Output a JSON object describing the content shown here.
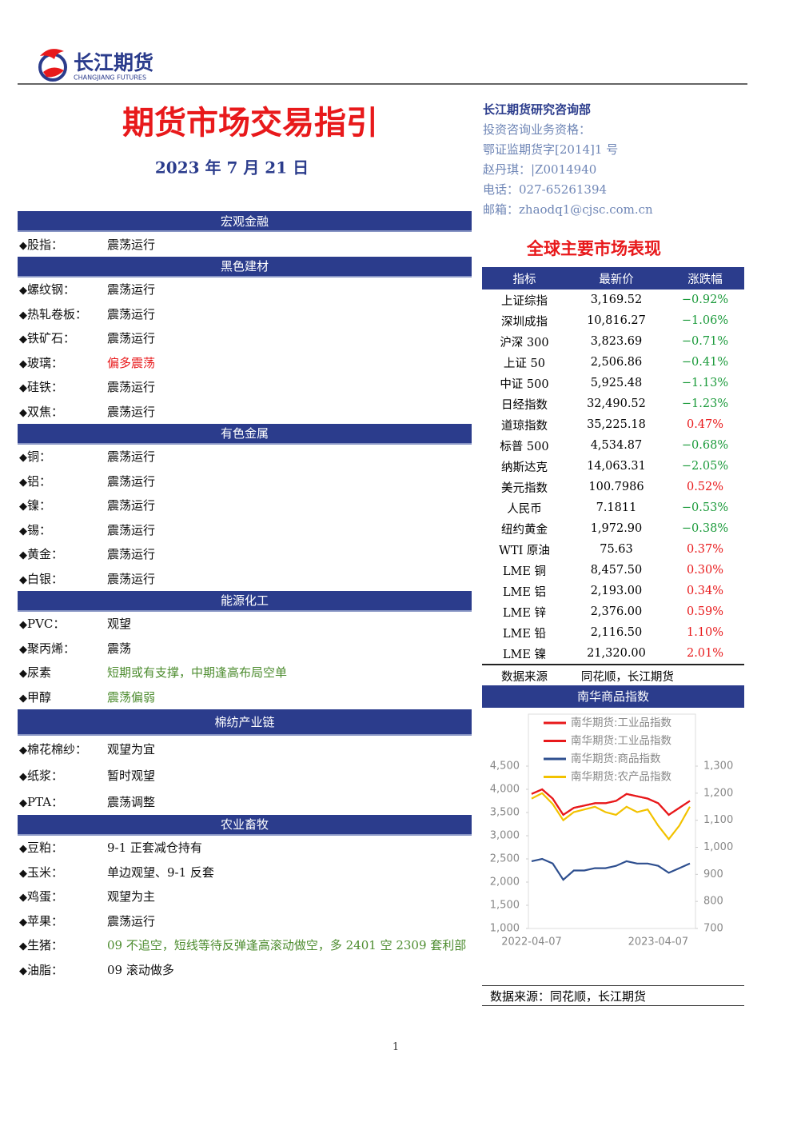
{
  "header": {
    "logo_cn": "长江期货",
    "logo_en": "CHANGJIANG FUTURES",
    "title": "期货市场交易指引",
    "date": "2023 年 7 月 21 日"
  },
  "contact": {
    "department": "长江期货研究咨询部",
    "lines": [
      "投资咨询业务资格：",
      "鄂证监期货字[2014]1 号",
      "赵丹琪：|Z0014940",
      "电话：027-65261394",
      "邮箱：zhaodq1@cjsc.com.cn"
    ]
  },
  "guide": {
    "sections": [
      {
        "title": "宏观金融",
        "items": [
          {
            "name": "股指：",
            "view": "震荡运行"
          }
        ]
      },
      {
        "title": "黑色建材",
        "items": [
          {
            "name": "螺纹钢：",
            "view": "震荡运行"
          },
          {
            "name": "热轧卷板：",
            "view": "震荡运行"
          },
          {
            "name": "铁矿石：",
            "view": "震荡运行"
          },
          {
            "name": "玻璃：",
            "view": "偏多震荡",
            "color": "#e8191b"
          },
          {
            "name": "硅铁：",
            "view": "震荡运行"
          },
          {
            "name": "双焦：",
            "view": "震荡运行"
          }
        ]
      },
      {
        "title": "有色金属",
        "items": [
          {
            "name": "铜：",
            "view": "震荡运行"
          },
          {
            "name": "铝：",
            "view": "震荡运行"
          },
          {
            "name": "镍：",
            "view": "震荡运行"
          },
          {
            "name": "锡：",
            "view": "震荡运行"
          },
          {
            "name": "黄金：",
            "view": "震荡运行"
          },
          {
            "name": "白银：",
            "view": "震荡运行"
          }
        ]
      },
      {
        "title": "能源化工",
        "items": [
          {
            "name": "PVC：",
            "view": "观望"
          },
          {
            "name": "聚丙烯：",
            "view": "震荡"
          },
          {
            "name": "尿素",
            "view": "短期或有支撑，中期逢高布局空单",
            "color": "#4d8c2f"
          },
          {
            "name": "甲醇",
            "view": "震荡偏弱",
            "color": "#4d8c2f"
          }
        ]
      },
      {
        "title": "棉纺产业链",
        "items": [
          {
            "name": "棉花棉纱：",
            "view": "观望为宜"
          },
          {
            "name": "纸浆：",
            "view": "暂时观望"
          },
          {
            "name": "PTA：",
            "view": "震荡调整"
          }
        ]
      },
      {
        "title": "农业畜牧",
        "items": [
          {
            "name": "豆粕：",
            "view": "9-1 正套减仓持有"
          },
          {
            "name": "玉米：",
            "view": "单边观望、9-1 反套"
          },
          {
            "name": "鸡蛋：",
            "view": "观望为主"
          },
          {
            "name": "苹果：",
            "view": "震荡运行"
          },
          {
            "name": "生猪：",
            "view": "09 不追空，短线等待反弹逢高滚动做空，多 2401 空 2309 套利部",
            "color": "#4d8c2f"
          },
          {
            "name": "油脂：",
            "view": "09 滚动做多"
          }
        ]
      }
    ]
  },
  "markets": {
    "title": "全球主要市场表现",
    "columns": [
      "指标",
      "最新价",
      "涨跌幅"
    ],
    "rows": [
      [
        "上证综指",
        "3,169.52",
        "−0.92%"
      ],
      [
        "深圳成指",
        "10,816.27",
        "−1.06%"
      ],
      [
        "沪深 300",
        "3,823.69",
        "−0.71%"
      ],
      [
        "上证 50",
        "2,506.86",
        "−0.41%"
      ],
      [
        "中证 500",
        "5,925.48",
        "−1.13%"
      ],
      [
        "日经指数",
        "32,490.52",
        "−1.23%"
      ],
      [
        "道琼指数",
        "35,225.18",
        "0.47%"
      ],
      [
        "标普 500",
        "4,534.87",
        "−0.68%"
      ],
      [
        "纳斯达克",
        "14,063.31",
        "−2.05%"
      ],
      [
        "美元指数",
        "100.7986",
        "0.52%"
      ],
      [
        "人民币",
        "7.1811",
        "−0.53%"
      ],
      [
        "纽约黄金",
        "1,972.90",
        "−0.38%"
      ],
      [
        "WTI 原油",
        "75.63",
        "0.37%"
      ],
      [
        "LME 铜",
        "8,457.50",
        "0.30%"
      ],
      [
        "LME 铝",
        "2,193.00",
        "0.34%"
      ],
      [
        "LME 锌",
        "2,376.00",
        "0.59%"
      ],
      [
        "LME 铅",
        "2,116.50",
        "1.10%"
      ],
      [
        "LME 镍",
        "21,320.00",
        "2.01%"
      ]
    ],
    "source": [
      "数据来源",
      "同花顺，长江期货"
    ]
  },
  "chart_data": {
    "type": "line",
    "title": "南华商品指数",
    "categories": [
      "2022-04-07",
      null,
      null,
      null,
      null,
      null,
      null,
      null,
      null,
      null,
      null,
      null,
      "2023-04-07",
      null,
      null,
      null
    ],
    "series": [
      {
        "name": "南华期货:工业品指数",
        "color": "#e8191b",
        "values": [
          3900,
          4000,
          3800,
          3450,
          3600,
          3650,
          3700,
          3700,
          3750,
          3900,
          3850,
          3800,
          3700,
          3450,
          3600,
          3750
        ]
      },
      {
        "name": "南华期货:工业品指数",
        "color": "#e8191b",
        "values": [
          3900,
          4000,
          3800,
          3450,
          3600,
          3650,
          3700,
          3700,
          3750,
          3900,
          3850,
          3800,
          3700,
          3450,
          3600,
          3750
        ]
      },
      {
        "name": "南华期货:商品指数",
        "color": "#2e4f8f",
        "values": [
          2450,
          2500,
          2400,
          2050,
          2250,
          2250,
          2300,
          2300,
          2350,
          2450,
          2400,
          2400,
          2350,
          2200,
          2300,
          2400
        ]
      },
      {
        "name": "南华期货:农产品指数",
        "color": "#f2c200",
        "axis": "y2",
        "values": [
          1180,
          1200,
          1160,
          1100,
          1130,
          1140,
          1150,
          1130,
          1120,
          1150,
          1130,
          1140,
          1080,
          1030,
          1080,
          1150
        ]
      }
    ],
    "ylim": [
      1000,
      4500
    ],
    "yticks": [
      {
        "value": 1000,
        "label": "1,000"
      },
      {
        "value": 1500,
        "label": "1,500"
      },
      {
        "value": 2000,
        "label": "2,000"
      },
      {
        "value": 2500,
        "label": "2,500"
      },
      {
        "value": 3000,
        "label": "3,000"
      },
      {
        "value": 3500,
        "label": "3,500"
      },
      {
        "value": 4000,
        "label": "4,000"
      },
      {
        "value": 4500,
        "label": "4,500"
      }
    ],
    "y2lim": [
      700,
      1300
    ],
    "y2ticks": [
      700,
      800,
      900,
      {
        "value": 1000,
        "label": "1,000"
      },
      {
        "value": 1100,
        "label": "1,100"
      },
      {
        "value": 1200,
        "label": "1,200"
      },
      {
        "value": 1300,
        "label": "1,300"
      }
    ],
    "source": "数据来源：同花顺，长江期货"
  },
  "page_number": "1"
}
